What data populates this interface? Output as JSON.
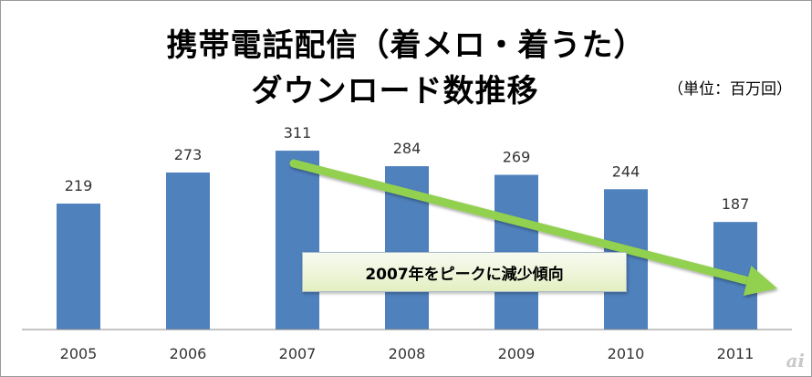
{
  "chart_data": {
    "type": "bar",
    "title_line1": "携帯電話配信（着メロ・着うた）",
    "title_line2": "ダウンロード数推移",
    "unit": "（単位：百万回）",
    "categories": [
      "2005",
      "2006",
      "2007",
      "2008",
      "2009",
      "2010",
      "2011"
    ],
    "values": [
      219,
      273,
      311,
      284,
      269,
      244,
      187
    ],
    "bar_color": "#4f81bd",
    "ylim": [
      0,
      350
    ],
    "grid": false,
    "annotation": "2007年をピークに減少傾向",
    "trend_arrow": {
      "color": "#92d050",
      "from_category": "2007",
      "direction": "down"
    }
  },
  "watermark": "ai"
}
